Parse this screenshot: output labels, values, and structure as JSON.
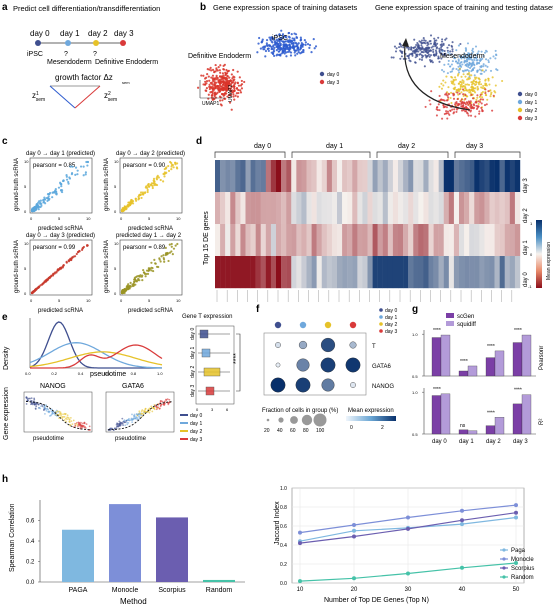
{
  "panel_labels": {
    "a": "a",
    "b": "b",
    "c": "c",
    "d": "d",
    "e": "e",
    "f": "f",
    "g": "g",
    "h": "h"
  },
  "colors": {
    "day0": "#3f4f8f",
    "day1": "#6fa8dc",
    "day2": "#e6c229",
    "day3": "#d93a3a",
    "ipsc": "#2e5ccf",
    "endo": "#d9352a",
    "scgen": "#7b3fa6",
    "squidiff": "#b39bd9",
    "paga": "#7fb8e0",
    "monocle": "#7d8fd8",
    "scorpius": "#6b5eb0",
    "random": "#45c2a8"
  },
  "panel_a": {
    "title": "Predict cell differentiation/transdifferentiation",
    "days": [
      "day 0",
      "day 1",
      "day 2",
      "day 3"
    ],
    "cell_types": [
      "iPSC",
      "Mesendoderm",
      "Definitive Endoderm"
    ],
    "question_marks": [
      "?",
      "?"
    ],
    "growth_label": "growth factor Δz",
    "delta_sub": "sem",
    "z1": "z",
    "z1_sup": "1",
    "z1_sub": "sem",
    "z2": "z",
    "z2_sup": "2",
    "z2_sub": "sem"
  },
  "panel_b": {
    "left_title": "Gene expression space of training datasets",
    "right_title": "Gene expression space of training and testing datasets",
    "left_labels": [
      "iPSC",
      "Definitive Endoderm"
    ],
    "right_label": "Mesendoderm",
    "umap_x": "UMAP1",
    "umap_y": "UMAP2",
    "legend_left": [
      "day 0",
      "day 3"
    ],
    "legend_right": [
      "day 0",
      "day 1",
      "day 2",
      "day 3"
    ]
  },
  "panel_c": {
    "plots": [
      {
        "title": "day 0 → day 1 (predicted)",
        "pearson": "pearsonr = 0.85"
      },
      {
        "title": "day 0 → day 2 (predicted)",
        "pearson": "pearsonr = 0.90"
      },
      {
        "title": "day 0 → day 3 (predicted)",
        "pearson": "pearsonr = 0.99"
      },
      {
        "title": "predicted day 1 → day 2",
        "pearson": "pearsonr = 0.89"
      }
    ],
    "xlabel": "predicted scRNA",
    "ylabel": "ground-truth scRNA",
    "ticks": [
      "0",
      "5",
      "10"
    ]
  },
  "panel_d": {
    "day_groups": [
      "day 0",
      "day 1",
      "day 2",
      "day 3"
    ],
    "ylabel": "Top 15 DE genes",
    "row_labels": [
      "day 3",
      "day 2",
      "day 1",
      "day 0"
    ],
    "colorbar_title": "Mean expression",
    "colorbar_ticks": [
      "1",
      "0",
      "-1"
    ]
  },
  "panel_e": {
    "density_ylabel": "Density",
    "pseudotime": "pseudotime",
    "ticks": [
      "0.0",
      "0.2",
      "0.4",
      "0.6",
      "0.8",
      "1.0"
    ],
    "box_title": "Gene T expression",
    "box_days": [
      "day 0",
      "day 1",
      "day 2",
      "day 3"
    ],
    "significance": "****",
    "gene1": "NANOG",
    "gene2": "GATA6",
    "gene_ylabel": "Gene expression",
    "legend": [
      "day 0",
      "day 1",
      "day 2",
      "day 3"
    ],
    "box_ticks": [
      "0",
      "3",
      "6"
    ]
  },
  "panel_f": {
    "genes": [
      "T",
      "GATA6",
      "NANOG"
    ],
    "legend": [
      "day 0",
      "day 1",
      "day 2",
      "day 3"
    ],
    "fraction_title": "Fraction of cells in group (%)",
    "fraction_ticks": [
      "20",
      "40",
      "60",
      "80",
      "100"
    ],
    "mean_title": "Mean expression",
    "mean_ticks": [
      "0",
      "2"
    ],
    "dot_fraction": [
      [
        20,
        40,
        90,
        30
      ],
      [
        10,
        80,
        95,
        95
      ],
      [
        95,
        95,
        80,
        20
      ]
    ],
    "dot_mean": [
      [
        0.3,
        1.0,
        2.2,
        0.8
      ],
      [
        0.1,
        1.5,
        2.4,
        2.5
      ],
      [
        2.6,
        2.4,
        1.6,
        0.2
      ]
    ]
  },
  "panel_g": {
    "legend": [
      "scGen",
      "squidiff"
    ],
    "top_ylabel": "Pearsonr",
    "bottom_ylabel": "R²",
    "yticks": [
      "0.5",
      "1.0"
    ],
    "days": [
      "day 0",
      "day 1",
      "day 2",
      "day 3"
    ],
    "sig_top": [
      "****",
      "****",
      "****",
      "****"
    ],
    "sig_bottom": [
      "****",
      "ns",
      "****",
      "****"
    ]
  },
  "panel_h": {
    "bar_ylabel": "Spearman Correlation",
    "bar_xlabel": "Method",
    "line_ylabel": "Jaccard Index",
    "line_xlabel": "Number of Top DE Genes (Top N)",
    "bar_yticks": [
      "0.0",
      "0.2",
      "0.4",
      "0.6"
    ],
    "line_yticks": [
      "0.0",
      "0.2",
      "0.4",
      "0.6",
      "0.8",
      "1.0"
    ],
    "line_xticks": [
      "10",
      "20",
      "30",
      "40",
      "50"
    ],
    "legend": [
      "Paga",
      "Monocle",
      "Scorpius",
      "Random"
    ]
  },
  "chart_data": [
    {
      "type": "bar",
      "categories": [
        "PAGA",
        "Monocle",
        "Scorpius",
        "Random"
      ],
      "values": [
        0.51,
        0.76,
        0.63,
        0.02
      ],
      "xlabel": "Method",
      "ylabel": "Spearman Correlation",
      "ylim": [
        0,
        0.8
      ]
    },
    {
      "type": "line",
      "x": [
        10,
        20,
        30,
        40,
        50
      ],
      "series": [
        {
          "name": "Paga",
          "values": [
            0.44,
            0.55,
            0.58,
            0.62,
            0.69
          ]
        },
        {
          "name": "Monocle",
          "values": [
            0.53,
            0.61,
            0.69,
            0.76,
            0.82
          ]
        },
        {
          "name": "Scorpius",
          "values": [
            0.42,
            0.49,
            0.57,
            0.66,
            0.74
          ]
        },
        {
          "name": "Random",
          "values": [
            0.02,
            0.05,
            0.1,
            0.16,
            0.21
          ]
        }
      ],
      "xlabel": "Number of Top DE Genes (Top N)",
      "ylabel": "Jaccard Index",
      "ylim": [
        0,
        1.0
      ]
    },
    {
      "type": "bar",
      "categories": [
        "day 0",
        "day 1",
        "day 2",
        "day 3"
      ],
      "series": [
        {
          "name": "scGen",
          "values": [
            0.96,
            0.56,
            0.72,
            0.9
          ]
        },
        {
          "name": "squidiff",
          "values": [
            0.99,
            0.62,
            0.8,
            0.99
          ]
        }
      ],
      "ylabel": "Pearsonr",
      "ylim": [
        0.5,
        1.05
      ]
    },
    {
      "type": "bar",
      "categories": [
        "day 0",
        "day 1",
        "day 2",
        "day 3"
      ],
      "series": [
        {
          "name": "scGen",
          "values": [
            0.96,
            0.55,
            0.6,
            0.86
          ]
        },
        {
          "name": "squidiff",
          "values": [
            0.98,
            0.54,
            0.7,
            0.97
          ]
        }
      ],
      "ylabel": "R²",
      "ylim": [
        0.5,
        1.05
      ]
    }
  ]
}
